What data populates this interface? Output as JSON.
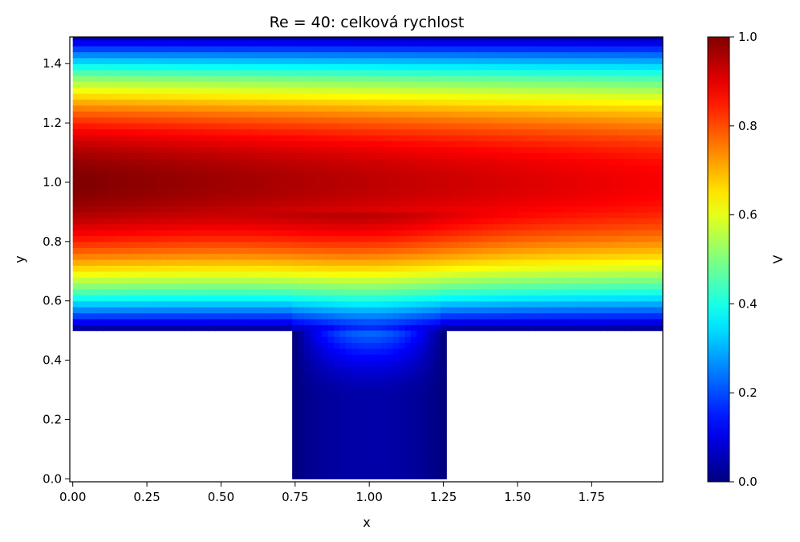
{
  "chart_data": {
    "type": "heatmap",
    "title": "Re = 40: celková rychlost",
    "xlabel": "x",
    "ylabel": "y",
    "xlim": [
      -0.01,
      1.99
    ],
    "ylim": [
      -0.01,
      1.49
    ],
    "x_ticks": [
      {
        "value": 0.0,
        "label": "0.00"
      },
      {
        "value": 0.25,
        "label": "0.25"
      },
      {
        "value": 0.5,
        "label": "0.50"
      },
      {
        "value": 0.75,
        "label": "0.75"
      },
      {
        "value": 1.0,
        "label": "1.00"
      },
      {
        "value": 1.25,
        "label": "1.25"
      },
      {
        "value": 1.5,
        "label": "1.50"
      },
      {
        "value": 1.75,
        "label": "1.75"
      }
    ],
    "y_ticks": [
      {
        "value": 0.0,
        "label": "0.0"
      },
      {
        "value": 0.2,
        "label": "0.2"
      },
      {
        "value": 0.4,
        "label": "0.4"
      },
      {
        "value": 0.6,
        "label": "0.6"
      },
      {
        "value": 0.8,
        "label": "0.8"
      },
      {
        "value": 1.0,
        "label": "1.0"
      },
      {
        "value": 1.2,
        "label": "1.2"
      },
      {
        "value": 1.4,
        "label": "1.4"
      }
    ],
    "colormap": "jet",
    "colorbar": {
      "label": "V",
      "range": [
        0.0,
        1.0
      ],
      "ticks": [
        {
          "value": 0.0,
          "label": "0.0"
        },
        {
          "value": 0.2,
          "label": "0.2"
        },
        {
          "value": 0.4,
          "label": "0.4"
        },
        {
          "value": 0.6,
          "label": "0.6"
        },
        {
          "value": 0.8,
          "label": "0.8"
        },
        {
          "value": 1.0,
          "label": "1.0"
        }
      ]
    },
    "domain": {
      "channel": {
        "x": [
          0.0,
          2.0
        ],
        "y": [
          0.5,
          1.5
        ]
      },
      "inlet": {
        "x": [
          0.75,
          1.25
        ],
        "y": [
          0.0,
          0.5
        ]
      }
    },
    "cell_size": 0.02,
    "grid": false
  }
}
